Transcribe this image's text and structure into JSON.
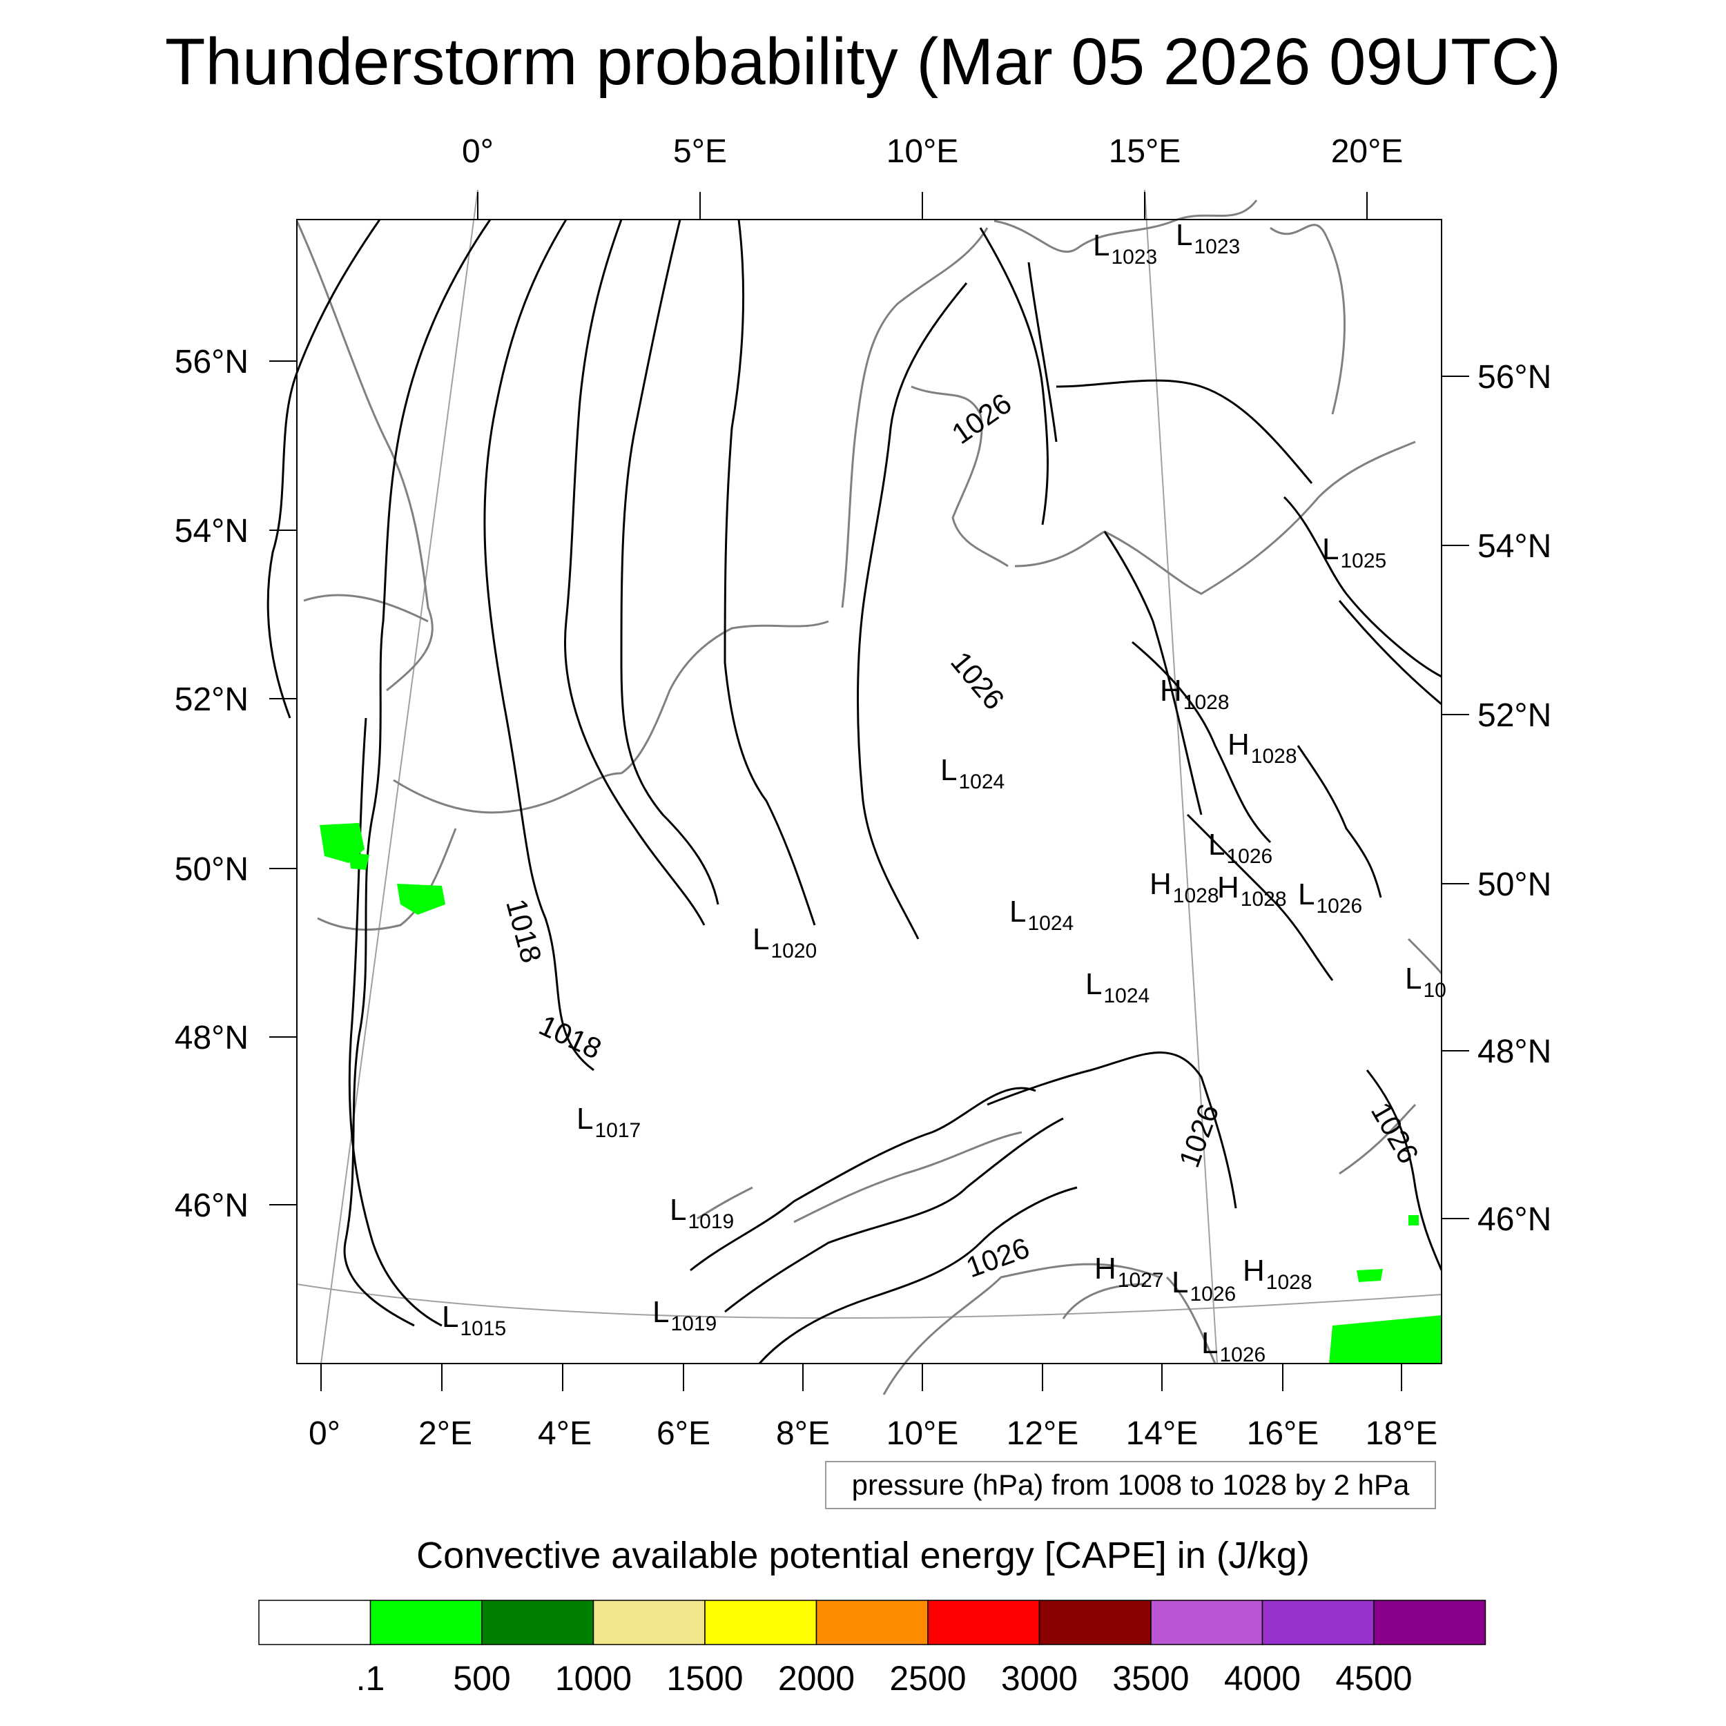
{
  "title": "Thunderstorm probability (Mar 05 2026 09UTC)",
  "top_lon_ticks": [
    "0°",
    "5°E",
    "10°E",
    "15°E",
    "20°E"
  ],
  "bottom_lon_ticks": [
    "0°",
    "2°E",
    "4°E",
    "6°E",
    "8°E",
    "10°E",
    "12°E",
    "14°E",
    "16°E",
    "18°E"
  ],
  "left_lat_ticks": [
    "56°N",
    "54°N",
    "52°N",
    "50°N",
    "48°N",
    "46°N"
  ],
  "right_lat_ticks": [
    "56°N",
    "54°N",
    "52°N",
    "50°N",
    "48°N",
    "46°N"
  ],
  "contour_labels": [
    "1026",
    "1026",
    "1018",
    "1018",
    "1026",
    "1026",
    "1026"
  ],
  "pressure_centers": [
    {
      "type": "L",
      "value": "1023"
    },
    {
      "type": "L",
      "value": "1023"
    },
    {
      "type": "L",
      "value": "1025"
    },
    {
      "type": "H",
      "value": "1028"
    },
    {
      "type": "H",
      "value": "1028"
    },
    {
      "type": "L",
      "value": "1024"
    },
    {
      "type": "L",
      "value": "1026"
    },
    {
      "type": "H",
      "value": "1028"
    },
    {
      "type": "H",
      "value": "1028"
    },
    {
      "type": "L",
      "value": "1026"
    },
    {
      "type": "L",
      "value": "1024"
    },
    {
      "type": "L",
      "value": "1020"
    },
    {
      "type": "L",
      "value": "1024"
    },
    {
      "type": "L",
      "value": "10"
    },
    {
      "type": "L",
      "value": "1017"
    },
    {
      "type": "L",
      "value": "1019"
    },
    {
      "type": "H",
      "value": "1027"
    },
    {
      "type": "L",
      "value": "1026"
    },
    {
      "type": "H",
      "value": "1028"
    },
    {
      "type": "L",
      "value": "1015"
    },
    {
      "type": "L",
      "value": "1019"
    },
    {
      "type": "L",
      "value": "1026"
    }
  ],
  "contour_note": "pressure (hPa) from 1008 to 1028 by 2 hPa",
  "colorbar": {
    "title": "Convective available potential energy [CAPE] in (J/kg)",
    "colors": [
      "#ffffff",
      "#00ff00",
      "#008000",
      "#f0e68c",
      "#ffff00",
      "#ff8c00",
      "#ff0000",
      "#8b0000",
      "#ba55d3",
      "#9932cc",
      "#8b008b"
    ],
    "labels": [
      ".1",
      "500",
      "1000",
      "1500",
      "2000",
      "2500",
      "3000",
      "3500",
      "4000",
      "4500"
    ]
  }
}
